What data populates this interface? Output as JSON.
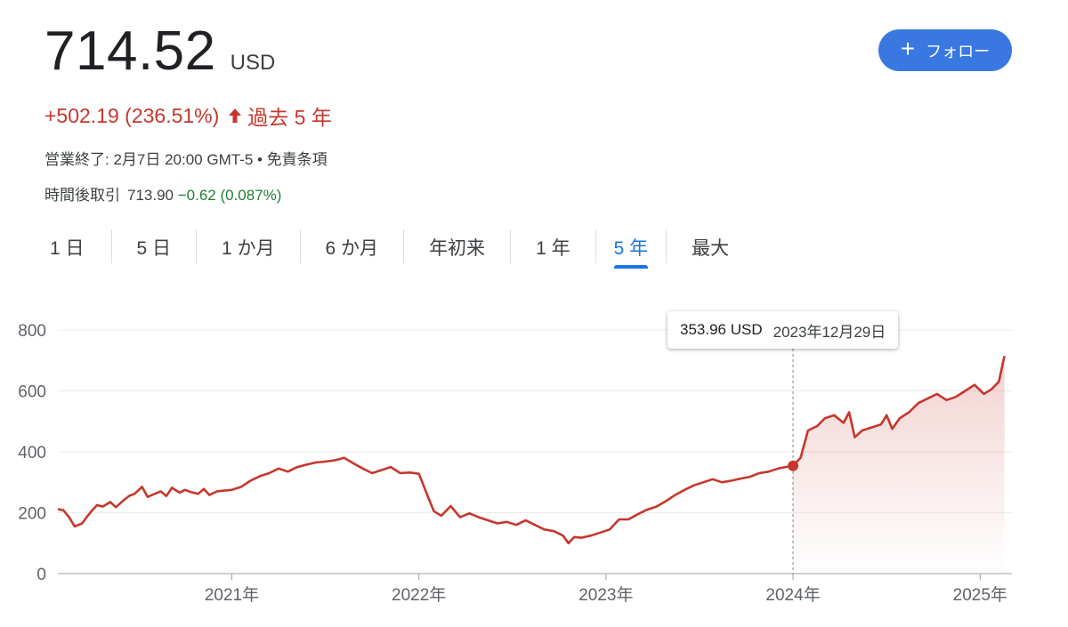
{
  "quote": {
    "price": "714.52",
    "currency": "USD",
    "change": "+502.19 (236.51%)",
    "period": "過去 5 年",
    "market_status": "営業終了: 2月7日 20:00 GMT-5 • 免責条項",
    "after_hours_label": "時間後取引",
    "after_hours_price": "713.90",
    "after_hours_change": "−0.62 (0.087%)",
    "follow_label": "フォロー"
  },
  "tabs": [
    {
      "label": "1 日",
      "active": false
    },
    {
      "label": "5 日",
      "active": false
    },
    {
      "label": "1 か月",
      "active": false
    },
    {
      "label": "6 か月",
      "active": false
    },
    {
      "label": "年初来",
      "active": false
    },
    {
      "label": "1 年",
      "active": false
    },
    {
      "label": "5 年",
      "active": true
    },
    {
      "label": "最大",
      "active": false
    }
  ],
  "colors": {
    "line": "#c5372c",
    "accent": "#1a73e8",
    "button": "#3878e0",
    "negative_change": "#1e7e34"
  },
  "tooltip": {
    "value": "353.96 USD",
    "date": "2023年12月29日",
    "marker_x": 2024.0,
    "marker_y": 353.96
  },
  "chart_data": {
    "type": "area",
    "title": "",
    "xlabel": "",
    "ylabel": "",
    "x_ticks": [
      2021,
      2022,
      2023,
      2024,
      2025
    ],
    "x_tick_labels": [
      "2021年",
      "2022年",
      "2023年",
      "2024年",
      "2025年"
    ],
    "y_ticks": [
      0,
      200,
      400,
      600,
      800
    ],
    "xlim": [
      2020.07,
      2025.17
    ],
    "ylim": [
      0,
      800
    ],
    "grid": true,
    "legend": "none",
    "series": [
      {
        "x": [
          2020.07,
          2020.1,
          2020.13,
          2020.16,
          2020.2,
          2020.23,
          2020.25,
          2020.28,
          2020.31,
          2020.35,
          2020.38,
          2020.42,
          2020.45,
          2020.48,
          2020.52,
          2020.55,
          2020.58,
          2020.62,
          2020.65,
          2020.68,
          2020.72,
          2020.75,
          2020.78,
          2020.82,
          2020.85,
          2020.88,
          2020.92,
          2020.95,
          2021.0,
          2021.05,
          2021.1,
          2021.15,
          2021.2,
          2021.25,
          2021.3,
          2021.35,
          2021.4,
          2021.45,
          2021.5,
          2021.55,
          2021.6,
          2021.65,
          2021.7,
          2021.75,
          2021.8,
          2021.85,
          2021.9,
          2021.95,
          2022.0,
          2022.05,
          2022.08,
          2022.12,
          2022.17,
          2022.22,
          2022.27,
          2022.32,
          2022.37,
          2022.42,
          2022.47,
          2022.52,
          2022.57,
          2022.62,
          2022.67,
          2022.72,
          2022.77,
          2022.8,
          2022.83,
          2022.87,
          2022.92,
          2022.97,
          2023.02,
          2023.07,
          2023.12,
          2023.17,
          2023.22,
          2023.27,
          2023.32,
          2023.37,
          2023.42,
          2023.47,
          2023.52,
          2023.57,
          2023.62,
          2023.67,
          2023.72,
          2023.77,
          2023.82,
          2023.87,
          2023.92,
          2023.96,
          2024.0,
          2024.04,
          2024.08,
          2024.13,
          2024.17,
          2024.22,
          2024.27,
          2024.3,
          2024.33,
          2024.37,
          2024.42,
          2024.47,
          2024.5,
          2024.53,
          2024.57,
          2024.62,
          2024.67,
          2024.72,
          2024.77,
          2024.82,
          2024.87,
          2024.92,
          2024.97,
          2025.02,
          2025.06,
          2025.1,
          2025.13
        ],
        "values": [
          212,
          208,
          185,
          155,
          165,
          190,
          205,
          225,
          220,
          235,
          218,
          240,
          255,
          262,
          285,
          252,
          260,
          270,
          255,
          282,
          266,
          275,
          268,
          262,
          278,
          258,
          270,
          272,
          275,
          285,
          305,
          320,
          330,
          345,
          335,
          350,
          358,
          365,
          368,
          372,
          380,
          362,
          345,
          330,
          340,
          350,
          330,
          332,
          328,
          250,
          205,
          190,
          222,
          185,
          198,
          185,
          175,
          165,
          170,
          160,
          175,
          160,
          145,
          140,
          125,
          100,
          120,
          118,
          125,
          135,
          145,
          178,
          178,
          195,
          210,
          220,
          238,
          258,
          275,
          290,
          300,
          310,
          300,
          305,
          312,
          318,
          330,
          335,
          345,
          350,
          354,
          380,
          470,
          485,
          510,
          520,
          495,
          530,
          448,
          470,
          480,
          490,
          520,
          475,
          510,
          530,
          560,
          575,
          590,
          570,
          580,
          600,
          620,
          590,
          605,
          630,
          714.52
        ]
      }
    ]
  }
}
